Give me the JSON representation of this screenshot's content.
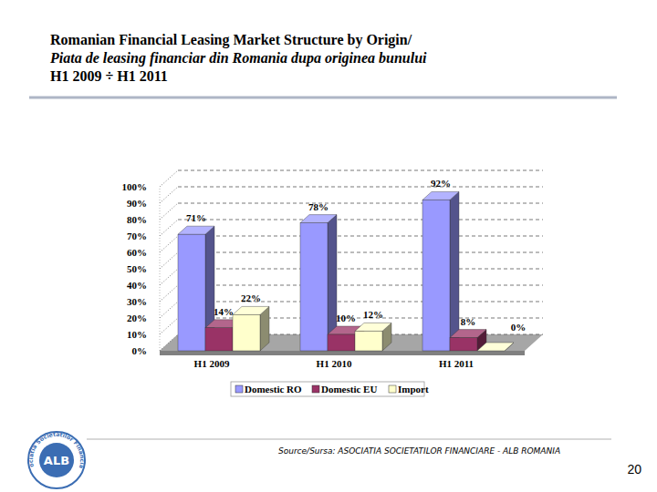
{
  "header": {
    "title_en": "Romanian Financial Leasing Market Structure by Origin/",
    "title_ro": "Piata de leasing financiar din Romania dupa originea bunului",
    "period": "H1 2009 ÷ H1 2011"
  },
  "chart_data": {
    "type": "bar",
    "categories": [
      "H1 2009",
      "H1 2010",
      "H1 2011"
    ],
    "series": [
      {
        "name": "Domestic RO",
        "color": "#9999ff",
        "values": [
          71,
          78,
          92
        ],
        "value_labels": [
          "71%",
          "78%",
          "92%"
        ]
      },
      {
        "name": "Domestic EU",
        "color": "#993366",
        "values": [
          14,
          10,
          8
        ],
        "value_labels": [
          "14%",
          "10%",
          "8%"
        ]
      },
      {
        "name": "Import",
        "color": "#ffffcc",
        "values": [
          22,
          12,
          0
        ],
        "value_labels": [
          "22%",
          "12%",
          "0%"
        ]
      }
    ],
    "ylim": [
      0,
      100
    ],
    "yticks": [
      {
        "value": 0,
        "label": "0%"
      },
      {
        "value": 10,
        "label": "10%"
      },
      {
        "value": 20,
        "label": "20%"
      },
      {
        "value": 30,
        "label": "30%"
      },
      {
        "value": 40,
        "label": "40%"
      },
      {
        "value": 50,
        "label": "50%"
      },
      {
        "value": 60,
        "label": "60%"
      },
      {
        "value": 70,
        "label": "70%"
      },
      {
        "value": 80,
        "label": "80%"
      },
      {
        "value": 90,
        "label": "90%"
      },
      {
        "value": 100,
        "label": "100%"
      }
    ],
    "grid": true,
    "legend": "bottom",
    "data_labels": true
  },
  "footer": {
    "source": "Source/Sursa: ASOCIATIA SOCIETATILOR FINANCIARE - ALB ROMANIA",
    "page": "20"
  },
  "logo": {
    "ring_text": "Asociatia Societatilor Financiare",
    "text": "ALB"
  }
}
